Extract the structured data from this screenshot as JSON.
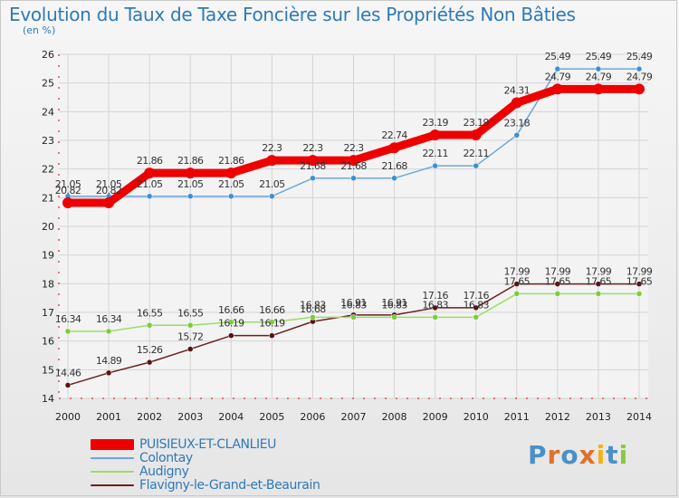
{
  "title": "Evolution du Taux de Taxe Foncière sur les Propriétés Non Bâties",
  "subtitle": "(en %)",
  "logo": {
    "text": "Proxiti",
    "colors": [
      "#4a90c8",
      "#e0702a",
      "#4a90c8",
      "#e0702a",
      "#f2b21c",
      "#4a90c8",
      "#8dc63f"
    ]
  },
  "colors": {
    "axis": "#d00000",
    "grid": "#d4d4d4",
    "tick_text": "#222222"
  },
  "chart_data": {
    "type": "line",
    "x": [
      "2000",
      "2001",
      "2002",
      "2003",
      "2004",
      "2005",
      "2006",
      "2007",
      "2008",
      "2009",
      "2010",
      "2011",
      "2012",
      "2013",
      "2014"
    ],
    "ylim": [
      14,
      26
    ],
    "yticks": [
      14,
      15,
      16,
      17,
      18,
      19,
      20,
      21,
      22,
      23,
      24,
      25,
      26
    ],
    "grid": true,
    "legend_position": "bottom-left",
    "series": [
      {
        "name": "PUISIEUX-ET-CLANLIEU",
        "color": "#ee0000",
        "values": [
          20.82,
          20.82,
          21.86,
          21.86,
          21.86,
          22.3,
          22.3,
          22.3,
          22.74,
          23.19,
          23.19,
          24.31,
          24.79,
          24.79,
          24.79
        ],
        "labels": [
          "20.82",
          "20.82",
          "21.86",
          "21.86",
          "21.86",
          "22.3",
          "22.3",
          "22.3",
          "22.74",
          "23.19",
          "23.19",
          "24.31",
          "24.79",
          "24.79",
          "24.79"
        ]
      },
      {
        "name": "Colontay",
        "color": "#6ea6d8",
        "values": [
          21.05,
          21.05,
          21.05,
          21.05,
          21.05,
          21.05,
          21.68,
          21.68,
          21.68,
          22.11,
          22.11,
          23.18,
          25.49,
          25.49,
          25.49
        ],
        "labels": [
          "21.05",
          "21.05",
          "21.05",
          "21.05",
          "21.05",
          "21.05",
          "21.68",
          "21.68",
          "21.68",
          "22.11",
          "22.11",
          "23.18",
          "25.49",
          "25.49",
          "25.49"
        ]
      },
      {
        "name": "Audigny",
        "color": "#99dd66",
        "values": [
          16.34,
          16.34,
          16.55,
          16.55,
          16.66,
          16.66,
          16.83,
          16.83,
          16.83,
          16.83,
          16.83,
          17.65,
          17.65,
          17.65,
          17.65
        ],
        "labels": [
          "16.34",
          "16.34",
          "16.55",
          "16.55",
          "16.66",
          "16.66",
          "16.83",
          "16.83",
          "16.83",
          "16.83",
          "16.83",
          "17.65",
          "17.65",
          "17.65",
          "17.65"
        ]
      },
      {
        "name": "Flavigny-le-Grand-et-Beaurain",
        "color": "#6b2020",
        "values": [
          14.46,
          14.89,
          15.26,
          15.72,
          16.19,
          16.19,
          16.68,
          16.91,
          16.91,
          17.16,
          17.16,
          17.99,
          17.99,
          17.99,
          17.99
        ],
        "labels": [
          "14.46",
          "14.89",
          "15.26",
          "15.72",
          "16.19",
          "16.19",
          "16.68",
          "16.91",
          "16.91",
          "17.16",
          "17.16",
          "17.99",
          "17.99",
          "17.99",
          "17.99"
        ]
      }
    ]
  }
}
